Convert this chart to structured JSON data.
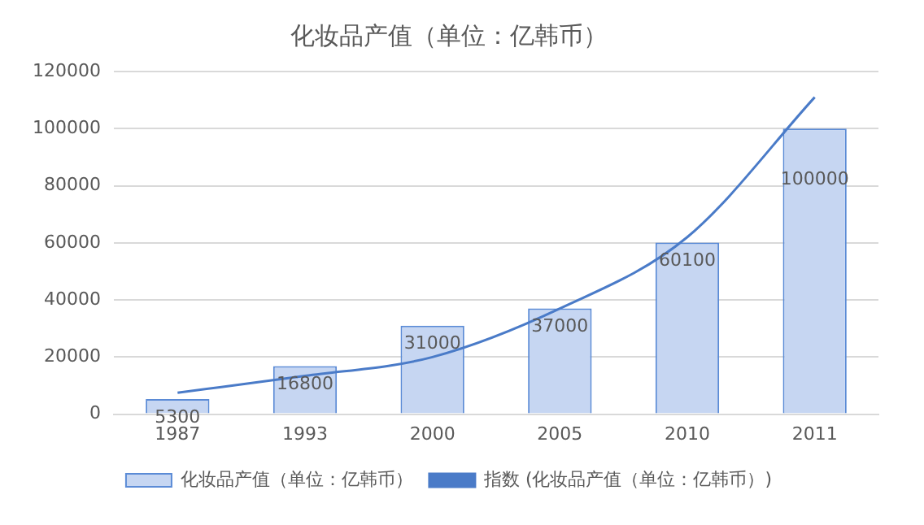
{
  "chart_data": {
    "type": "bar",
    "title": "化妆品产值（单位：亿韩币）",
    "categories": [
      "1987",
      "1993",
      "2000",
      "2005",
      "2010",
      "2011"
    ],
    "series": [
      {
        "name": "化妆品产值（单位：亿韩币）",
        "color": "#c6d6f2",
        "values": [
          5300,
          16800,
          31000,
          37000,
          60100,
          100000
        ],
        "value_labels": [
          "5300",
          "16800",
          "31000",
          "37000",
          "60100",
          "100000"
        ]
      },
      {
        "name": "指数 (化妆品产值（单位：亿韩币）)",
        "type": "line",
        "color": "#4a7bc8",
        "values": [
          7500,
          13400,
          20000,
          37000,
          62000,
          111000
        ]
      }
    ],
    "ylim": [
      0,
      120000
    ],
    "yticks": [
      0,
      20000,
      40000,
      60000,
      80000,
      100000,
      120000
    ],
    "grid": "y",
    "legend": "bottom",
    "marker": "none"
  }
}
